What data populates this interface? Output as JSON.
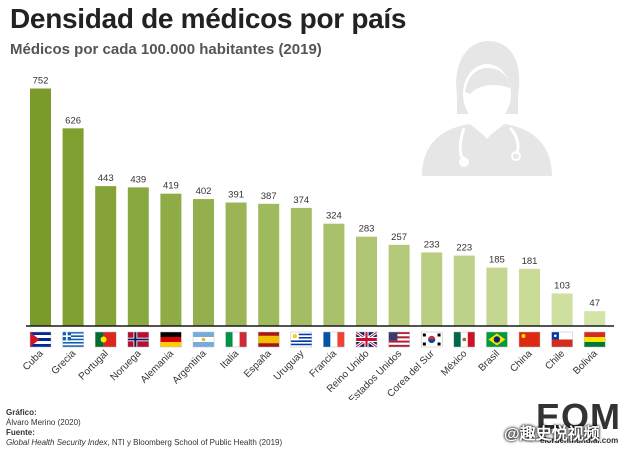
{
  "chart_data": {
    "type": "bar",
    "title": "Densidad de médicos por país",
    "subtitle": "Médicos por cada 100.000 habitantes (2019)",
    "categories": [
      "Cuba",
      "Grecia",
      "Portugal",
      "Noruega",
      "Alemania",
      "Argentina",
      "Italia",
      "España",
      "Uruguay",
      "Francia",
      "Reino Unido",
      "Estados Unidos",
      "Corea del Sur",
      "México",
      "Brasil",
      "China",
      "Chile",
      "Bolivia"
    ],
    "values": [
      752,
      626,
      443,
      439,
      419,
      402,
      391,
      387,
      374,
      324,
      283,
      257,
      233,
      223,
      185,
      181,
      103,
      47
    ],
    "data_labels": [
      "752",
      "626",
      "443",
      "439",
      "419",
      "402",
      "391",
      "387",
      "374",
      "324",
      "283",
      "257",
      "233",
      "223",
      "185",
      "181",
      "103",
      "47"
    ],
    "flags": [
      "flag-cuba",
      "flag-greece",
      "flag-portugal",
      "flag-norway",
      "flag-germany",
      "flag-argentina",
      "flag-italy",
      "flag-spain",
      "flag-uruguay",
      "flag-france",
      "flag-uk",
      "flag-usa",
      "flag-south-korea",
      "flag-mexico",
      "flag-brazil",
      "flag-china",
      "flag-chile",
      "flag-bolivia"
    ],
    "ylim": [
      0,
      760
    ],
    "grid": false,
    "legend": "none",
    "bar_color_start": "#7a9b2a",
    "bar_color_end": "#d4e3a6"
  },
  "credits": {
    "grafico_label": "Gráfico:",
    "grafico_value": "Álvaro Merino (2020)",
    "fuente_label": "Fuente:",
    "fuente_italic": "Global Health Security Index",
    "fuente_rest": ", NTI y Bloomberg School of Public Health (2019)"
  },
  "logo": {
    "letters": "EOM",
    "site": "elordenmundial.com"
  },
  "watermark": "@趣史悦视频",
  "illustration": "doctor-icon",
  "colors": {
    "illustration": "#e6e6e6",
    "axis": "#1a1a1a",
    "label": "#333333"
  }
}
